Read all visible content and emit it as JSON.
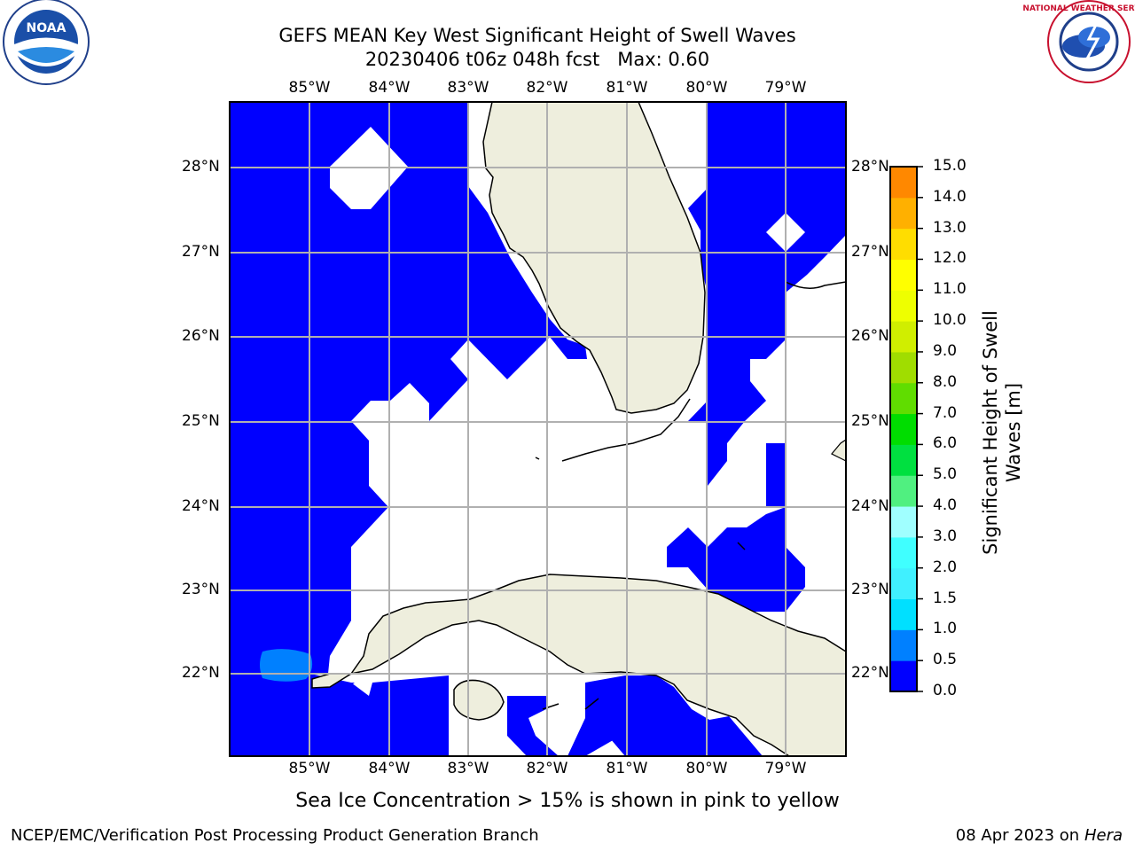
{
  "title": {
    "line1": "GEFS MEAN Key West Significant Height of Swell Waves",
    "line2": "20230406 t06z 048h fcst   Max: 0.60"
  },
  "logos": {
    "left": {
      "name": "noaa-logo",
      "text": "NOAA"
    },
    "right": {
      "name": "national-weather-service-logo",
      "text": "NATIONAL WEATHER SERVICE"
    }
  },
  "map": {
    "lon_labels": [
      "85°W",
      "84°W",
      "83°W",
      "82°W",
      "81°W",
      "80°W",
      "79°W"
    ],
    "lat_labels": [
      "28°N",
      "27°N",
      "26°N",
      "25°N",
      "24°N",
      "23°N",
      "22°N"
    ],
    "colors": {
      "sea_low": "#0000ff",
      "sea_mid": "#0080ff",
      "land": "#eeeedd",
      "no_data": "#ffffff",
      "gridline": "#b0b0b0"
    }
  },
  "colorbar": {
    "title_line1": "Significant Height of Swell",
    "title_line2": "Waves [m]",
    "ticks": [
      "15.0",
      "14.0",
      "13.0",
      "12.0",
      "11.0",
      "10.0",
      "9.0",
      "8.0",
      "7.0",
      "6.0",
      "5.0",
      "4.0",
      "3.0",
      "2.0",
      "1.5",
      "1.0",
      "0.5",
      "0.0"
    ],
    "bands": [
      "#0000ff",
      "#0080ff",
      "#00e0ff",
      "#40f0ff",
      "#40ffff",
      "#a0ffff",
      "#50f080",
      "#00e040",
      "#00dd00",
      "#60dd00",
      "#a0dd00",
      "#d0ee00",
      "#eeff00",
      "#ffff00",
      "#ffdd00",
      "#ffb000",
      "#ff8800",
      "#ff6000",
      "#ff3000",
      "#ff0000"
    ]
  },
  "footer": {
    "note": "Sea Ice Concentration > 15% is shown in pink to yellow",
    "credit_left": "NCEP/EMC/Verification Post Processing Product Generation Branch",
    "date": "08 Apr 2023 on ",
    "host": "Hera"
  }
}
